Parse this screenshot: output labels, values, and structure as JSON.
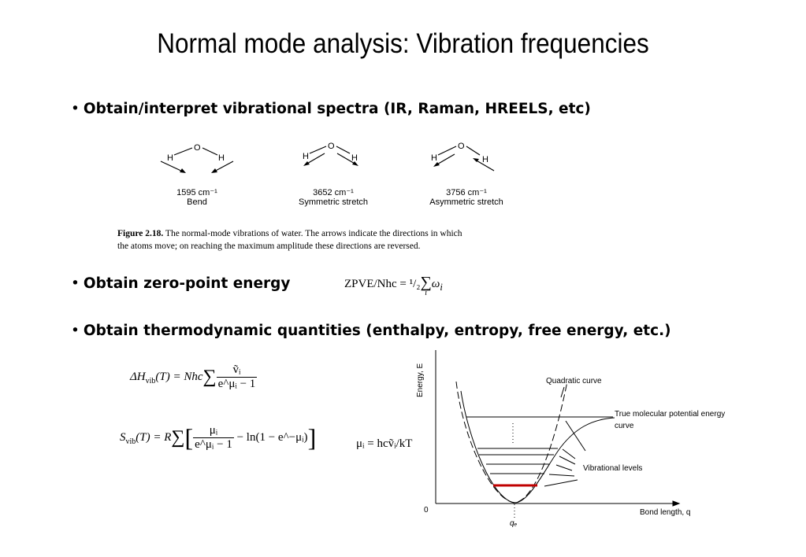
{
  "title": "Normal mode analysis: Vibration frequencies",
  "bullets": [
    {
      "marker": "•",
      "text": "Obtain/interpret vibrational spectra (IR, Raman, HREELS, etc)"
    },
    {
      "marker": "•",
      "text": "Obtain zero-point energy"
    },
    {
      "marker": "•",
      "text": "Obtain thermodynamic quantities (enthalpy, entropy, free energy, etc.)"
    }
  ],
  "water_figure": {
    "modes": [
      {
        "frequency": "1595 cm⁻¹",
        "name": "Bend"
      },
      {
        "frequency": "3652 cm⁻¹",
        "name": "Symmetric stretch"
      },
      {
        "frequency": "3756 cm⁻¹",
        "name": "Asymmetric stretch"
      }
    ],
    "atoms": {
      "o": "O",
      "h": "H"
    },
    "caption_label": "Figure 2.18.",
    "caption_line1": "The normal-mode vibrations of water. The arrows indicate the directions in which",
    "caption_line2": "the atoms move; on reaching the maximum amplitude these directions are reversed."
  },
  "equations": {
    "zpve_lhs": "ZPVE/Nhc = ",
    "zpve_half": "¹/₂",
    "zpve_sum": "∑",
    "zpve_index": "i",
    "zpve_term": "ω",
    "zpve_sub": "i",
    "enthalpy_lhs": "ΔH",
    "enthalpy_sub": "vib",
    "enthalpy_mid": "(T) = Nhc",
    "enthalpy_num": "ṽᵢ",
    "enthalpy_den": "e^μᵢ − 1",
    "entropy_lhs": "S",
    "entropy_sub": "vib",
    "entropy_mid": "(T) = R",
    "entropy_num": "μᵢ",
    "entropy_den": "e^μᵢ − 1",
    "entropy_tail": "− ln(1 − e^−μᵢ)",
    "mu_def": "μᵢ = hcṽᵢ/kT"
  },
  "pes_diagram": {
    "y_axis_label": "Energy, E",
    "x_axis_label": "Bond length, q",
    "origin_label": "0",
    "equilibrium_label": "qₑ",
    "quadratic_label": "Quadratic curve",
    "true_curve_label_1": "True molecular potential energy",
    "true_curve_label_2": "curve",
    "levels_label": "Vibrational levels",
    "ground_level_color": "#c00000"
  }
}
